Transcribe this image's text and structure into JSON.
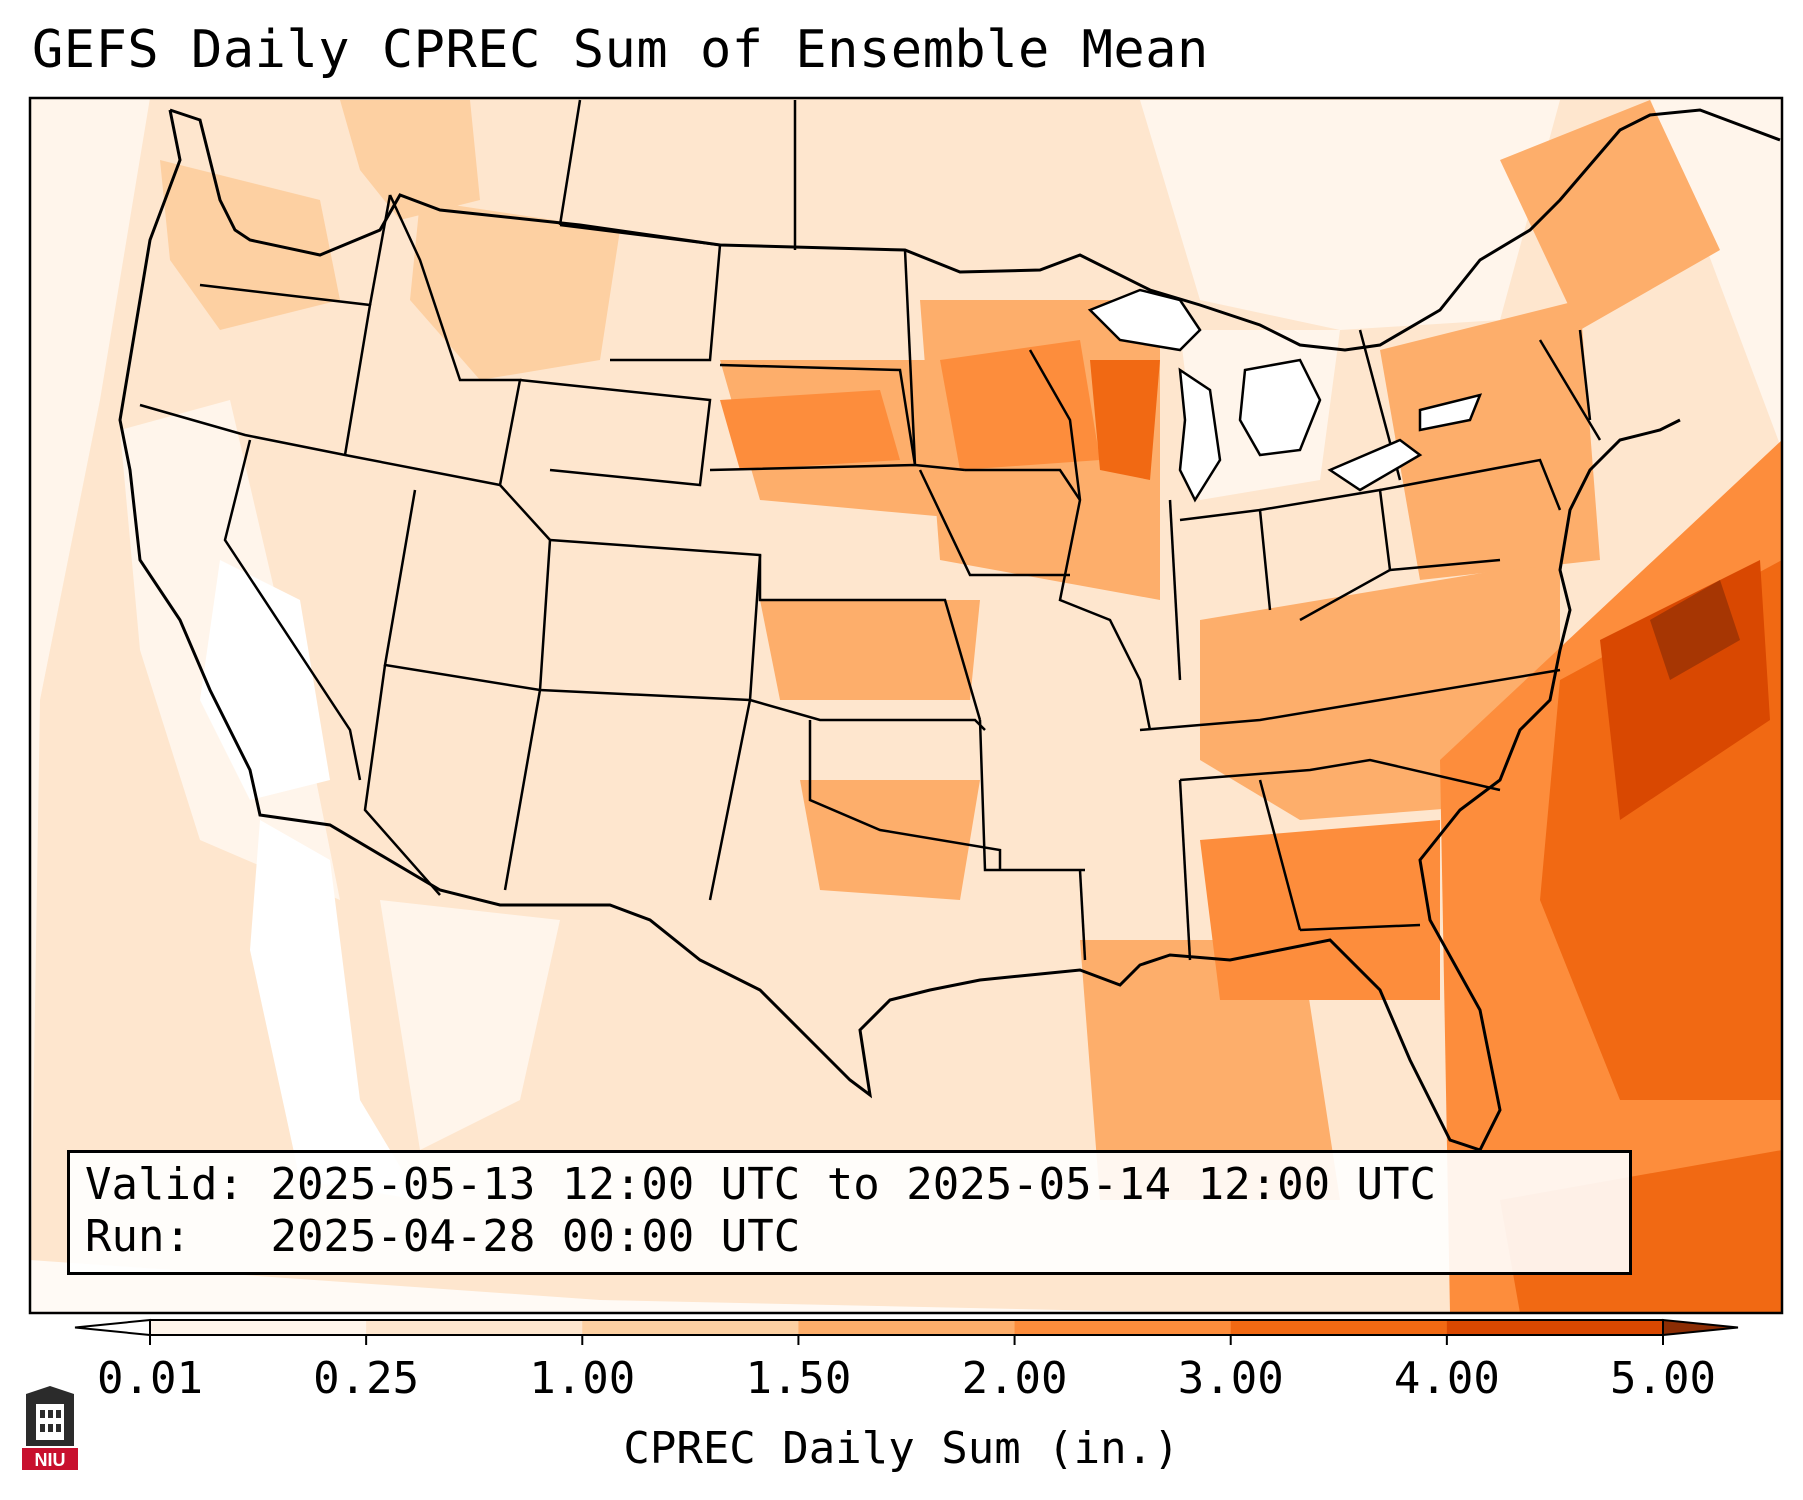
{
  "title": "GEFS Daily CPREC Sum of Ensemble Mean",
  "info": {
    "valid_label": "Valid:",
    "valid_value": "2025-05-13 12:00 UTC to 2025-05-14 12:00 UTC",
    "run_label": "Run:",
    "run_value": "2025-04-28 00:00 UTC"
  },
  "colorbar": {
    "label": "CPREC Daily Sum (in.)",
    "ticks": [
      "0.01",
      "0.25",
      "1.00",
      "1.50",
      "2.00",
      "3.00",
      "4.00",
      "5.00"
    ],
    "colors": [
      "#fff5eb",
      "#fee6ce",
      "#fdd0a2",
      "#fdae6b",
      "#fd8d3c",
      "#f16913",
      "#d94801"
    ],
    "under_color": "#ffffff",
    "over_color": "#8c2d04"
  },
  "logo": {
    "text": "NIU",
    "color": "#c8102e"
  },
  "map": {
    "region": "Contiguous United States",
    "background_color": "#fee6ce",
    "border_color": "#000000"
  }
}
